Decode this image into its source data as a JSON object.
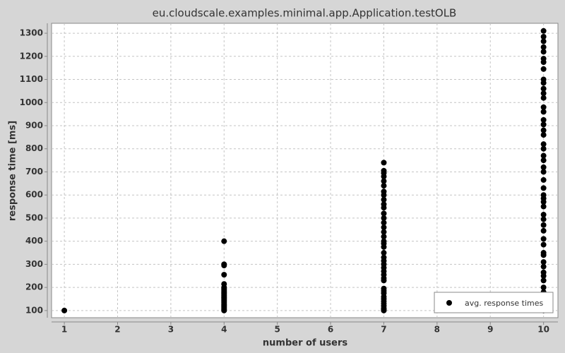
{
  "chart_data": {
    "type": "scatter",
    "title": "eu.cloudscale.examples.minimal.app.Application.testOLB",
    "xlabel": "number of users",
    "ylabel": "response time [ms]",
    "xlim": [
      0.76,
      10.27
    ],
    "ylim": [
      69,
      1343
    ],
    "xticks": [
      1,
      2,
      3,
      4,
      5,
      6,
      7,
      8,
      9,
      10
    ],
    "yticks": [
      100,
      200,
      300,
      400,
      500,
      600,
      700,
      800,
      900,
      1000,
      1100,
      1200,
      1300
    ],
    "grid": true,
    "legend": "lower right",
    "series": [
      {
        "name": "avg. response times",
        "color": "#000000",
        "x": [
          1,
          4,
          4,
          4,
          4,
          4,
          4,
          4,
          4,
          4,
          4,
          4,
          4,
          4,
          4,
          4,
          4,
          4,
          4,
          4,
          4,
          4,
          4,
          4,
          4,
          4,
          4,
          7,
          7,
          7,
          7,
          7,
          7,
          7,
          7,
          7,
          7,
          7,
          7,
          7,
          7,
          7,
          7,
          7,
          7,
          7,
          7,
          7,
          7,
          7,
          7,
          7,
          7,
          7,
          7,
          7,
          7,
          7,
          7,
          7,
          7,
          7,
          7,
          7,
          7,
          7,
          7,
          10,
          10,
          10,
          10,
          10,
          10,
          10,
          10,
          10,
          10,
          10,
          10,
          10,
          10,
          10,
          10,
          10,
          10,
          10,
          10,
          10,
          10,
          10,
          10,
          10,
          10,
          10,
          10,
          10,
          10,
          10,
          10,
          10,
          10,
          10,
          10,
          10,
          10,
          10,
          10,
          10,
          10,
          10,
          10,
          10,
          10,
          10,
          10,
          10,
          10,
          10
        ],
        "y": [
          100,
          100,
          105,
          110,
          115,
          120,
          125,
          130,
          135,
          140,
          145,
          150,
          155,
          160,
          165,
          170,
          175,
          180,
          185,
          190,
          195,
          200,
          215,
          255,
          295,
          300,
          400,
          100,
          105,
          110,
          120,
          130,
          140,
          150,
          160,
          175,
          185,
          195,
          230,
          240,
          255,
          270,
          285,
          300,
          315,
          330,
          350,
          375,
          390,
          400,
          420,
          440,
          460,
          480,
          500,
          520,
          545,
          560,
          580,
          600,
          615,
          640,
          660,
          680,
          695,
          705,
          740,
          100,
          110,
          130,
          150,
          170,
          180,
          200,
          230,
          250,
          265,
          290,
          310,
          340,
          350,
          385,
          410,
          445,
          470,
          495,
          515,
          550,
          570,
          585,
          600,
          630,
          665,
          700,
          720,
          750,
          770,
          800,
          820,
          860,
          880,
          905,
          925,
          960,
          980,
          1020,
          1040,
          1060,
          1085,
          1100,
          1145,
          1175,
          1190,
          1220,
          1240,
          1265,
          1285,
          1310
        ]
      }
    ]
  }
}
